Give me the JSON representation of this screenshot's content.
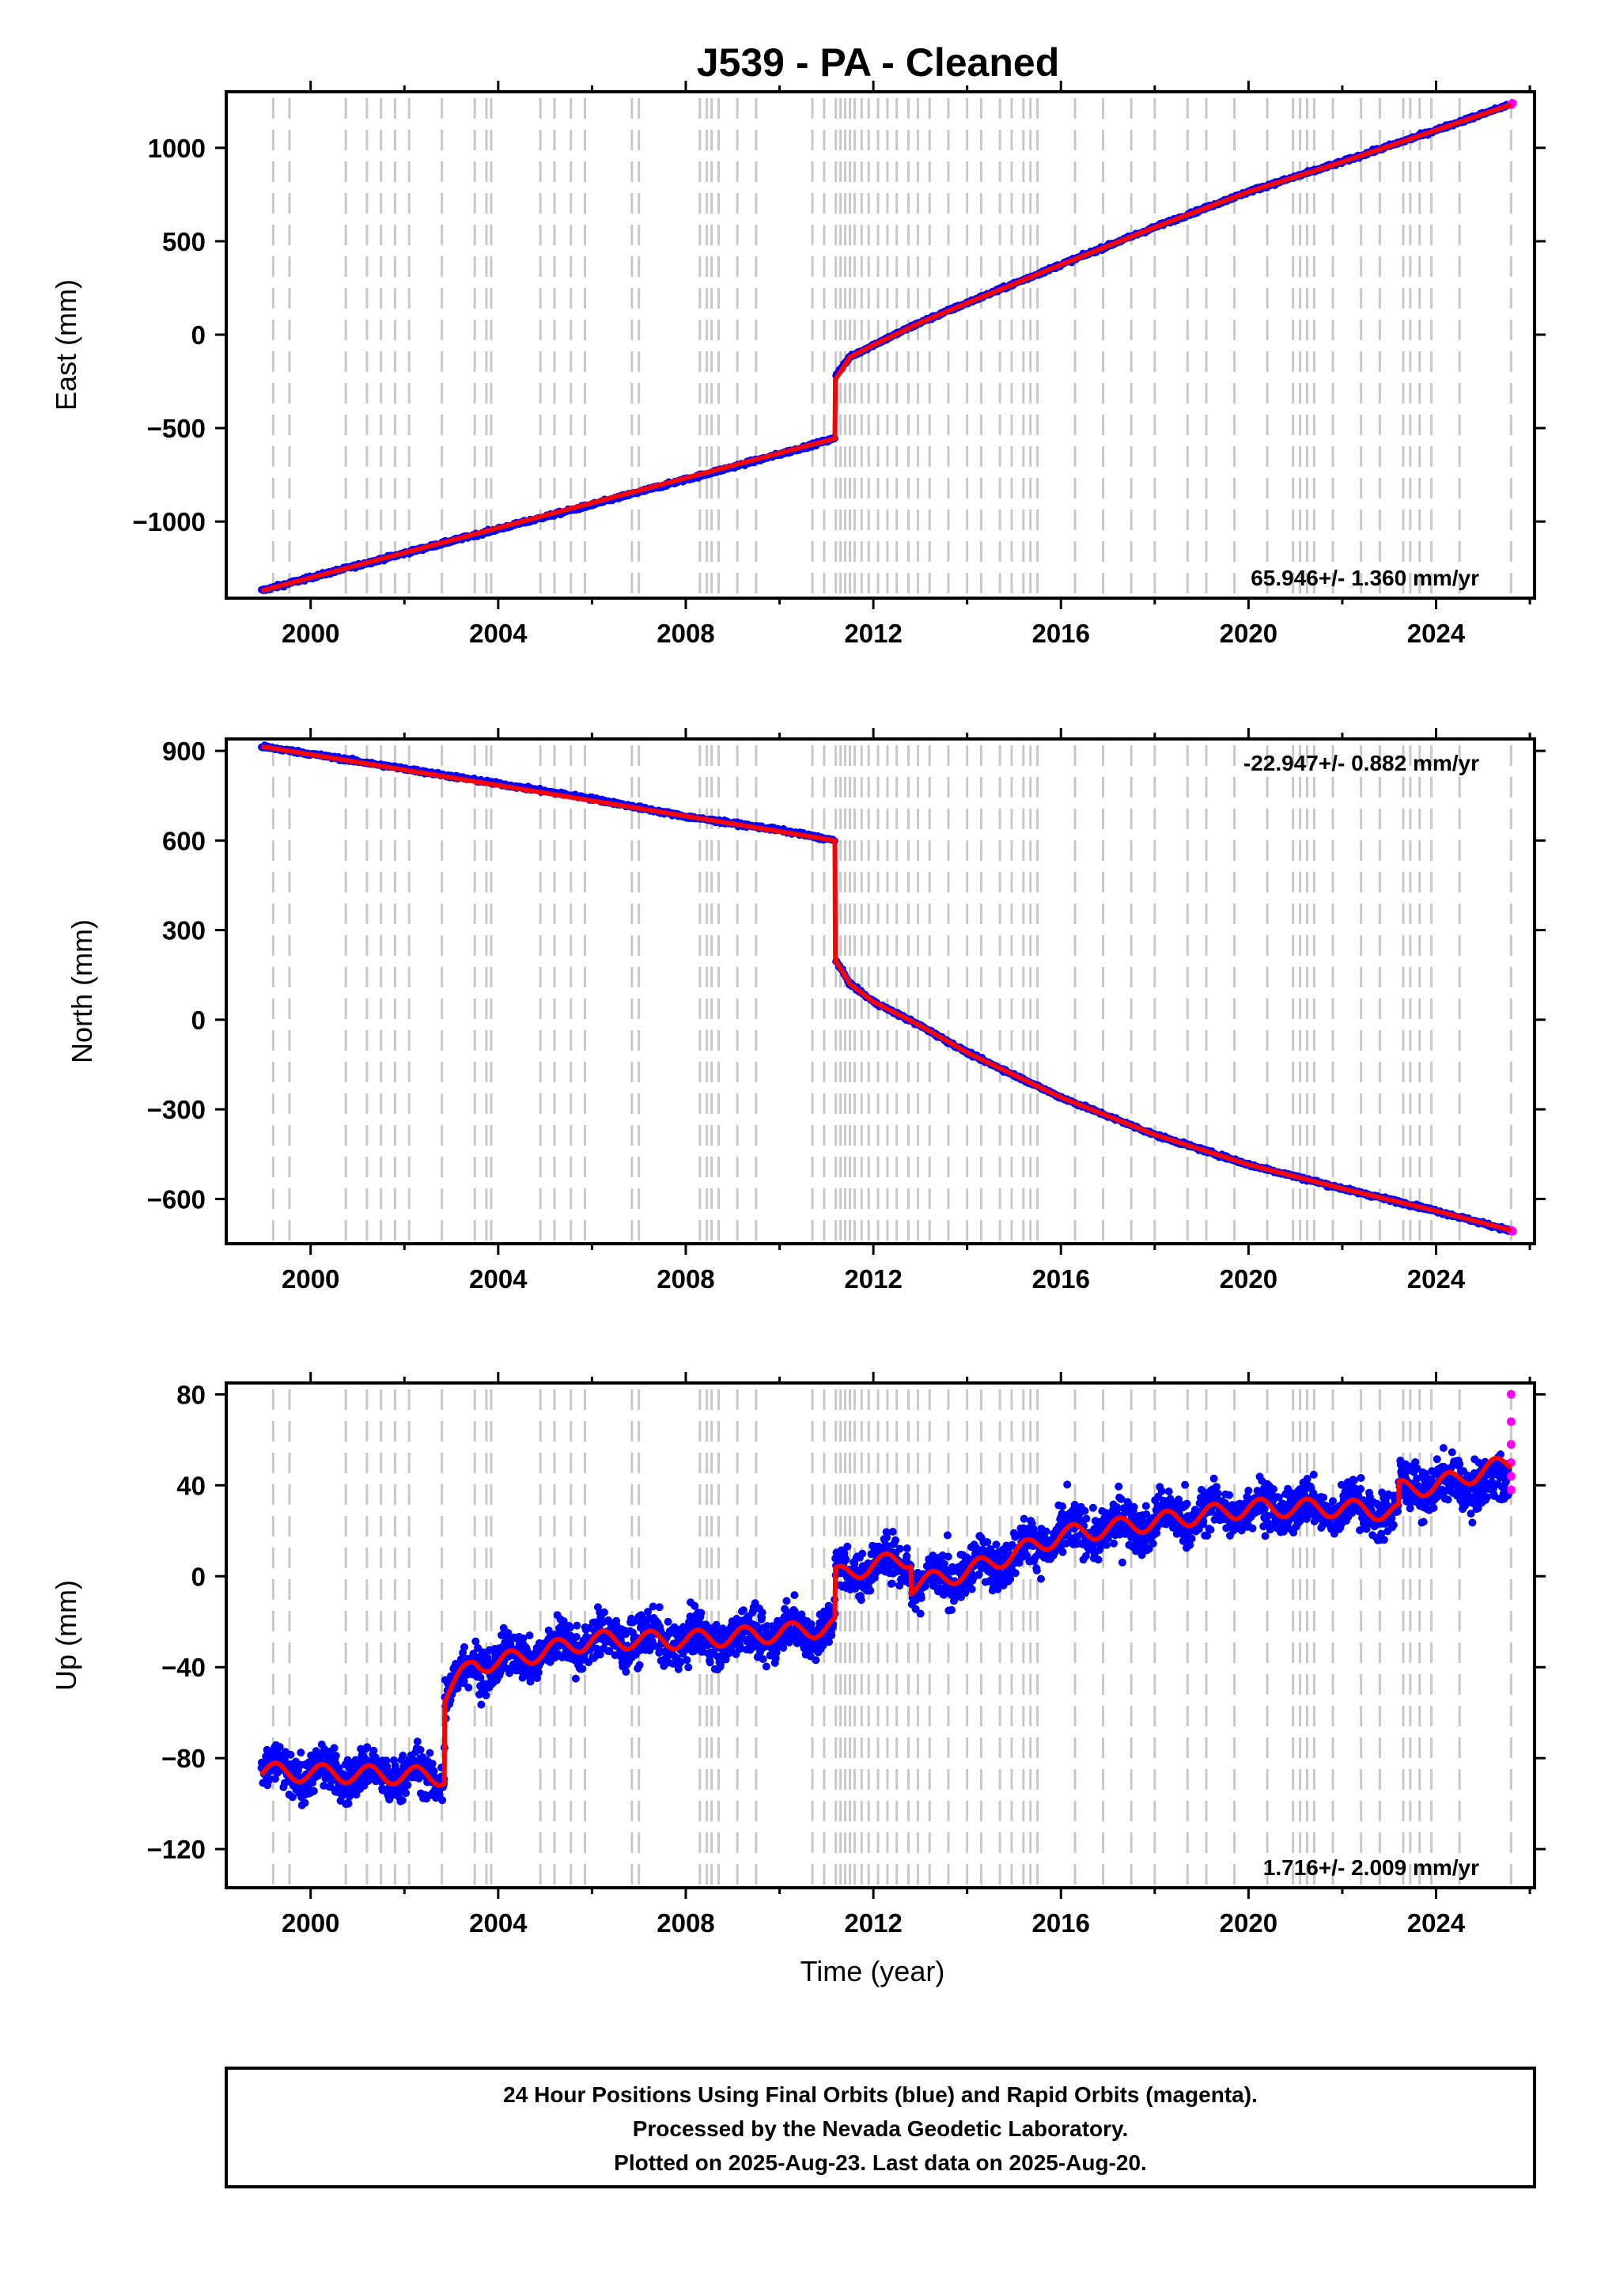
{
  "chart_data": [
    {
      "type": "scatter",
      "title": "J539  - PA - Cleaned",
      "ylabel": "East (mm)",
      "xlabel": "",
      "xlim": [
        1998.2,
        2026.1
      ],
      "ylim": [
        -1410,
        1300
      ],
      "xticks": [
        2000,
        2004,
        2008,
        2012,
        2016,
        2020,
        2024
      ],
      "yticks": [
        -1000,
        -500,
        0,
        500,
        1000
      ],
      "rate_text": "65.946+/- 1.360 mm/yr",
      "rate_position": "bottom-right",
      "grid": false,
      "series": [
        {
          "name": "",
          "color": "#0000ff",
          "kind": "points",
          "x": [
            1998.95,
            2000,
            2002,
            2004,
            2006,
            2008,
            2010,
            2011.18
          ],
          "y": [
            -1370,
            -1300,
            -1170,
            -1040,
            -910,
            -775,
            -640,
            -555
          ]
        },
        {
          "name": "",
          "color": "#0000ff",
          "kind": "points",
          "x": [
            2011.2,
            2011.5,
            2012,
            2013,
            2014,
            2016,
            2018,
            2020,
            2022,
            2024,
            2025.55
          ],
          "y": [
            -215,
            -120,
            -55,
            65,
            170,
            375,
            575,
            765,
            925,
            1095,
            1230
          ]
        },
        {
          "name": "",
          "color": "#ff00ff",
          "kind": "points",
          "x": [
            2025.6,
            2025.63
          ],
          "y": [
            1232,
            1238
          ]
        },
        {
          "name": "",
          "color": "#ff0000",
          "kind": "line",
          "x": [
            1998.95,
            2011.18,
            2011.19,
            2011.5,
            2012,
            2013,
            2014,
            2016,
            2018,
            2020,
            2022,
            2024,
            2025.6
          ],
          "y": [
            -1370,
            -555,
            -240,
            -120,
            -55,
            65,
            170,
            375,
            575,
            765,
            925,
            1095,
            1232
          ]
        }
      ]
    },
    {
      "type": "scatter",
      "title": "",
      "ylabel": "North (mm)",
      "xlabel": "",
      "xlim": [
        1998.2,
        2026.1
      ],
      "ylim": [
        -750,
        940
      ],
      "xticks": [
        2000,
        2004,
        2008,
        2012,
        2016,
        2020,
        2024
      ],
      "yticks": [
        -600,
        -300,
        0,
        300,
        600,
        900
      ],
      "rate_text": "-22.947+/- 0.882 mm/yr",
      "rate_position": "top-right",
      "grid": false,
      "series": [
        {
          "name": "",
          "color": "#0000ff",
          "kind": "points",
          "x": [
            1998.95,
            2000,
            2002,
            2004,
            2006,
            2008,
            2010,
            2011.18
          ],
          "y": [
            915,
            890,
            840,
            790,
            740,
            680,
            635,
            600
          ]
        },
        {
          "name": "",
          "color": "#0000ff",
          "kind": "points",
          "x": [
            2011.2,
            2011.5,
            2012,
            2013,
            2014,
            2016,
            2018,
            2020,
            2022,
            2024,
            2025.55
          ],
          "y": [
            200,
            120,
            60,
            -20,
            -110,
            -260,
            -385,
            -485,
            -565,
            -640,
            -705
          ]
        },
        {
          "name": "",
          "color": "#ff00ff",
          "kind": "points",
          "x": [
            2025.6,
            2025.63
          ],
          "y": [
            -705,
            -708
          ]
        },
        {
          "name": "",
          "color": "#ff0000",
          "kind": "line",
          "x": [
            1998.95,
            2011.18,
            2011.19,
            2011.5,
            2012,
            2013,
            2014,
            2016,
            2018,
            2020,
            2022,
            2024,
            2025.6
          ],
          "y": [
            915,
            600,
            200,
            120,
            60,
            -20,
            -110,
            -260,
            -385,
            -485,
            -565,
            -640,
            -705
          ]
        }
      ]
    },
    {
      "type": "scatter",
      "title": "",
      "ylabel": "Up (mm)",
      "xlabel": "Time (year)",
      "xlim": [
        1998.2,
        2026.1
      ],
      "ylim": [
        -137,
        85
      ],
      "xticks": [
        2000,
        2004,
        2008,
        2012,
        2016,
        2020,
        2024
      ],
      "yticks": [
        -120,
        -80,
        -40,
        0,
        40,
        80
      ],
      "rate_text": "1.716+/- 2.009 mm/yr",
      "rate_position": "bottom-right",
      "grid": false,
      "series": [
        {
          "name": "",
          "color": "#0000ff",
          "kind": "noisy-band",
          "x": [
            1998.95,
            2002.85,
            2002.86,
            2003.5,
            2004,
            2006,
            2008,
            2010,
            2011.18,
            2011.19,
            2012,
            2012.8,
            2012.81,
            2014,
            2016,
            2018,
            2020,
            2022,
            2023.2,
            2023.21,
            2024,
            2025.55
          ],
          "y": [
            -86,
            -88,
            -52,
            -38,
            -38,
            -28,
            -28,
            -25,
            -22,
            0,
            5,
            8,
            -4,
            2,
            18,
            24,
            30,
            30,
            28,
            38,
            40,
            42
          ],
          "spread": 7
        },
        {
          "name": "",
          "color": "#ff00ff",
          "kind": "points",
          "x": [
            2025.6,
            2025.6,
            2025.6,
            2025.6,
            2025.6,
            2025.6
          ],
          "y": [
            80,
            68,
            58,
            50,
            44,
            38
          ]
        },
        {
          "name": "",
          "color": "#ff0000",
          "kind": "line",
          "x": [
            1998.95,
            2002.85,
            2002.86,
            2003.5,
            2004,
            2006,
            2008,
            2010,
            2011.18,
            2011.19,
            2012,
            2012.8,
            2012.81,
            2014,
            2016,
            2018,
            2020,
            2022,
            2023.2,
            2023.21,
            2024,
            2025.6
          ],
          "y": [
            -86,
            -88,
            -52,
            -38,
            -38,
            -28,
            -28,
            -25,
            -22,
            0,
            5,
            8,
            -4,
            2,
            18,
            24,
            30,
            30,
            28,
            38,
            40,
            50
          ],
          "seasonal_amplitude": 4
        }
      ]
    }
  ],
  "events": [
    1999.2,
    1999.55,
    2000.75,
    2001.2,
    2001.5,
    2001.8,
    2002.1,
    2002.8,
    2003.5,
    2003.75,
    2003.85,
    2004.9,
    2005.2,
    2005.55,
    2005.85,
    2006.85,
    2007.0,
    2008.3,
    2008.45,
    2008.55,
    2008.7,
    2009.1,
    2009.5,
    2010.7,
    2010.95,
    2011.2,
    2011.3,
    2011.4,
    2011.5,
    2011.6,
    2011.75,
    2011.9,
    2012.1,
    2012.3,
    2012.5,
    2012.75,
    2012.95,
    2013.2,
    2013.6,
    2014.0,
    2014.3,
    2014.7,
    2014.95,
    2015.2,
    2015.35,
    2015.5,
    2016.3,
    2016.9,
    2017.5,
    2018.0,
    2018.7,
    2019.1,
    2019.7,
    2020.4,
    2020.95,
    2021.1,
    2021.25,
    2021.4,
    2021.8,
    2022.4,
    2022.8,
    2023.3,
    2023.45,
    2023.65,
    2023.9,
    2024.5,
    2025.6
  ],
  "footer": {
    "line1": "24 Hour Positions Using Final Orbits (blue) and Rapid Orbits (magenta).",
    "line2": "Processed by the Nevada Geodetic Laboratory.",
    "line3": "Plotted on 2025-Aug-23. Last data on 2025-Aug-20."
  }
}
